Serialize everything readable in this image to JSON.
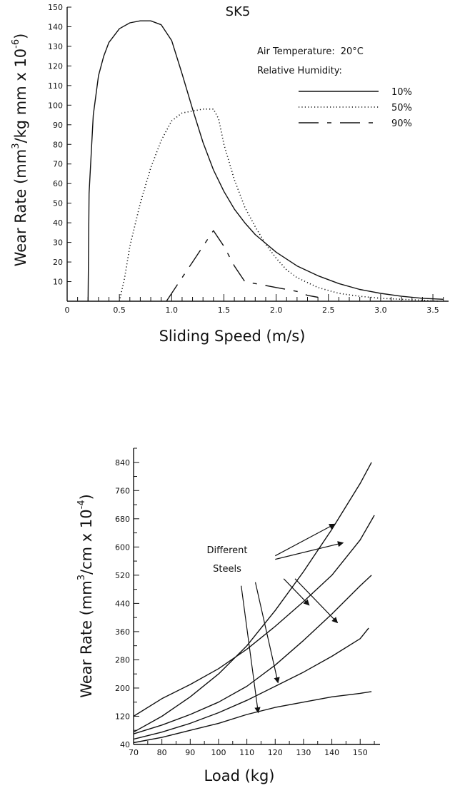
{
  "chart_data": [
    {
      "type": "line",
      "title": "SK5",
      "xlabel": "Sliding Speed (m/s)",
      "ylabel": "Wear Rate (mm 3 /kg mm x 10 -6 )",
      "ylabel_parts": [
        "Wear Rate (mm",
        "3",
        "/kg mm x 10",
        "-6",
        ")"
      ],
      "xlim": [
        0,
        3.65
      ],
      "ylim": [
        0,
        150
      ],
      "x_ticks": [
        0,
        0.5,
        1.0,
        1.5,
        2.0,
        2.5,
        3.0,
        3.5
      ],
      "x_tick_labels": [
        "0",
        "0.5",
        "1.0",
        "1.5",
        "2.0",
        "2.5",
        "3.0",
        "3.5"
      ],
      "y_ticks": [
        10,
        20,
        30,
        40,
        50,
        60,
        70,
        80,
        90,
        100,
        110,
        120,
        130,
        140,
        150
      ],
      "y_tick_labels": [
        "10",
        "20",
        "30",
        "40",
        "50",
        "60",
        "70",
        "80",
        "90",
        "100",
        "110",
        "120",
        "130",
        "140",
        "150"
      ],
      "annotations": {
        "air_temperature_label": "Air Temperature:",
        "air_temperature_value": "20",
        "air_temperature_unit": "°C",
        "humidity_label": "Relative Humidity:"
      },
      "legend_position": "top-right",
      "series": [
        {
          "name": "10%",
          "style": "solid",
          "x": [
            0.2,
            0.21,
            0.25,
            0.3,
            0.35,
            0.4,
            0.5,
            0.6,
            0.7,
            0.8,
            0.9,
            1.0,
            1.1,
            1.2,
            1.3,
            1.4,
            1.5,
            1.6,
            1.7,
            1.8,
            2.0,
            2.2,
            2.4,
            2.6,
            2.8,
            3.0,
            3.2,
            3.4,
            3.6
          ],
          "y": [
            0,
            55,
            95,
            115,
            125,
            132,
            139,
            142,
            143,
            143,
            141,
            133,
            116,
            98,
            81,
            67,
            56,
            47,
            40,
            34,
            25,
            18,
            13,
            9,
            6,
            4,
            2.5,
            1.5,
            1
          ]
        },
        {
          "name": "50%",
          "style": "dotted",
          "x": [
            0.5,
            0.55,
            0.6,
            0.7,
            0.8,
            0.9,
            1.0,
            1.1,
            1.2,
            1.3,
            1.4,
            1.45,
            1.5,
            1.6,
            1.7,
            1.8,
            1.9,
            2.0,
            2.1,
            2.2,
            2.4,
            2.6,
            2.8,
            3.0,
            3.2,
            3.4,
            3.55
          ],
          "y": [
            0,
            12,
            28,
            50,
            68,
            82,
            92,
            96,
            97,
            98,
            98,
            93,
            80,
            62,
            48,
            38,
            29,
            22,
            16,
            12,
            7,
            4,
            2.5,
            1.5,
            1,
            0.5,
            0
          ]
        },
        {
          "name": "90%",
          "style": "dashdot",
          "x": [
            0.95,
            1.0,
            1.1,
            1.2,
            1.3,
            1.4,
            1.5,
            1.6,
            1.7,
            1.8,
            1.9,
            2.0,
            2.1,
            2.2,
            2.3,
            2.4
          ],
          "y": [
            0,
            4,
            12,
            20,
            28,
            36,
            28,
            18,
            10,
            9,
            8,
            7,
            6,
            5,
            3,
            2
          ]
        }
      ]
    },
    {
      "type": "line",
      "title": "",
      "xlabel": "Load (kg)",
      "ylabel": "Wear Rate (mm 3 /cm x 10 -4 )",
      "ylabel_parts": [
        "Wear Rate (mm",
        "3",
        "/cm x 10",
        "-4",
        ")"
      ],
      "xlim": [
        70,
        157
      ],
      "ylim": [
        40,
        880
      ],
      "x_ticks": [
        70,
        80,
        90,
        100,
        110,
        120,
        130,
        140,
        150
      ],
      "x_tick_labels": [
        "70",
        "80",
        "90",
        "100",
        "110",
        "120",
        "130",
        "140",
        "150"
      ],
      "y_ticks": [
        40,
        120,
        200,
        280,
        360,
        440,
        520,
        600,
        680,
        760,
        840
      ],
      "y_tick_labels": [
        "40",
        "120",
        "200",
        "280",
        "360",
        "440",
        "520",
        "600",
        "680",
        "760",
        "840"
      ],
      "annotation": [
        "Different",
        "Steels"
      ],
      "series": [
        {
          "x": [
            70,
            80,
            90,
            100,
            110,
            120,
            130,
            140,
            150,
            155
          ],
          "y": [
            120,
            170,
            210,
            255,
            310,
            375,
            445,
            520,
            620,
            690
          ]
        },
        {
          "x": [
            70,
            80,
            90,
            100,
            110,
            120,
            130,
            140,
            150,
            154
          ],
          "y": [
            75,
            120,
            175,
            240,
            320,
            420,
            530,
            650,
            780,
            840
          ]
        },
        {
          "x": [
            70,
            80,
            90,
            100,
            110,
            120,
            130,
            140,
            150,
            154
          ],
          "y": [
            70,
            95,
            125,
            160,
            205,
            265,
            335,
            410,
            490,
            520
          ]
        },
        {
          "x": [
            70,
            80,
            90,
            100,
            110,
            120,
            130,
            140,
            150,
            153
          ],
          "y": [
            55,
            75,
            100,
            130,
            165,
            205,
            245,
            290,
            340,
            370
          ]
        },
        {
          "x": [
            70,
            80,
            90,
            100,
            110,
            120,
            130,
            140,
            150,
            154
          ],
          "y": [
            45,
            60,
            80,
            100,
            125,
            145,
            160,
            175,
            185,
            190
          ]
        }
      ],
      "arrows": [
        {
          "from": [
            120,
            575
          ],
          "to": [
            141,
            665
          ]
        },
        {
          "from": [
            120,
            565
          ],
          "to": [
            144,
            612
          ]
        },
        {
          "from": [
            127,
            510
          ],
          "to": [
            142,
            385
          ]
        },
        {
          "from": [
            123,
            510
          ],
          "to": [
            132,
            435
          ]
        },
        {
          "from": [
            113,
            500
          ],
          "to": [
            121,
            215
          ]
        },
        {
          "from": [
            108,
            490
          ],
          "to": [
            114,
            130
          ]
        }
      ]
    }
  ]
}
